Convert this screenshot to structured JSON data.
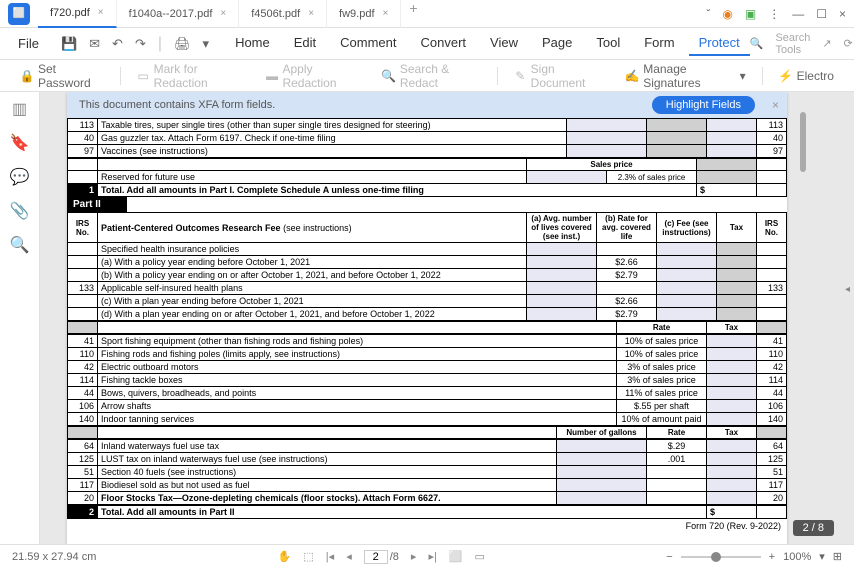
{
  "tabs": [
    {
      "label": "f720.pdf",
      "active": true
    },
    {
      "label": "f1040a--2017.pdf",
      "active": false
    },
    {
      "label": "f4506t.pdf",
      "active": false
    },
    {
      "label": "fw9.pdf",
      "active": false
    }
  ],
  "menu": {
    "file": "File",
    "items": [
      "Home",
      "Edit",
      "Comment",
      "Convert",
      "View",
      "Page",
      "Tool",
      "Form",
      "Protect"
    ],
    "active": "Protect",
    "search": "Search Tools"
  },
  "toolbar": {
    "set_password": "Set Password",
    "mark_redaction": "Mark for Redaction",
    "apply_redaction": "Apply Redaction",
    "search_redact": "Search & Redact",
    "sign_document": "Sign Document",
    "manage_signatures": "Manage Signatures",
    "electro": "Electro"
  },
  "banner": {
    "text": "This document contains XFA form fields.",
    "button": "Highlight Fields"
  },
  "doc": {
    "rows_top": [
      {
        "num": "113",
        "desc": "Taxable tires, super single tires (other than super single tires designed for steering)",
        "col1": "",
        "irs": "113"
      },
      {
        "num": "40",
        "desc": "Gas guzzler tax. Attach Form 6197. Check if one-time filing",
        "irs": "40"
      },
      {
        "num": "97",
        "desc": "Vaccines (see instructions)",
        "irs": "97"
      }
    ],
    "sales_price_label": "Sales price",
    "reserved": "Reserved for future use",
    "sales_price_pct": "2.3% of sales price",
    "total1": {
      "num": "1",
      "text": "Total. Add all amounts in Part I. Complete Schedule A unless one-time filing",
      "dollar": "$"
    },
    "part2": "Part II",
    "headers": {
      "irs_no": "IRS No.",
      "fee_title": "Patient-Centered Outcomes Research Fee",
      "fee_instr": "(see instructions)",
      "avg": "(a) Avg. number of lives covered (see inst.)",
      "rate": "(b) Rate for avg. covered life",
      "fee": "(c) Fee (see instructions)",
      "tax": "Tax"
    },
    "fee_rows": [
      {
        "desc": "Specified health insurance policies"
      },
      {
        "desc": "(a) With a policy year ending before October 1, 2021",
        "rate": "$2.66"
      },
      {
        "desc": "(b) With a policy year ending on or after October 1, 2021, and before October 1, 2022",
        "rate": "$2.79"
      },
      {
        "num": "133",
        "desc": "Applicable self-insured health plans",
        "irs": "133"
      },
      {
        "desc": "(c) With a plan year ending before October 1, 2021",
        "rate": "$2.66"
      },
      {
        "desc": "(d) With a plan year ending on or after October 1, 2021, and before October 1, 2022",
        "rate": "$2.79"
      }
    ],
    "rate_header": "Rate",
    "tax_header": "Tax",
    "excise_rows": [
      {
        "num": "41",
        "desc": "Sport fishing equipment (other than fishing rods and fishing poles)",
        "rate": "10% of sales price",
        "irs": "41"
      },
      {
        "num": "110",
        "desc": "Fishing rods and fishing poles (limits apply, see instructions)",
        "rate": "10% of sales price",
        "irs": "110"
      },
      {
        "num": "42",
        "desc": "Electric outboard motors",
        "rate": "3% of sales price",
        "irs": "42"
      },
      {
        "num": "114",
        "desc": "Fishing tackle boxes",
        "rate": "3% of sales price",
        "irs": "114"
      },
      {
        "num": "44",
        "desc": "Bows, quivers, broadheads, and points",
        "rate": "11% of sales price",
        "irs": "44"
      },
      {
        "num": "106",
        "desc": "Arrow shafts",
        "rate": "$.55 per shaft",
        "irs": "106"
      },
      {
        "num": "140",
        "desc": "Indoor tanning services",
        "rate": "10% of amount paid",
        "irs": "140"
      }
    ],
    "gallons_header": "Number of gallons",
    "fuel_rows": [
      {
        "num": "64",
        "desc": "Inland waterways fuel use tax",
        "rate": "$.29",
        "irs": "64"
      },
      {
        "num": "125",
        "desc": "LUST tax on inland waterways fuel use (see instructions)",
        "rate": ".001",
        "irs": "125"
      },
      {
        "num": "51",
        "desc": "Section 40 fuels (see instructions)",
        "rate": "",
        "irs": "51"
      },
      {
        "num": "117",
        "desc": "Biodiesel sold as but not used as fuel",
        "rate": "",
        "irs": "117"
      },
      {
        "num": "20",
        "desc": "Floor Stocks Tax—Ozone-depleting chemicals (floor stocks). Attach Form 6627.",
        "rate": "",
        "irs": "20"
      }
    ],
    "total2": {
      "num": "2",
      "text": "Total. Add all amounts in Part II",
      "dollar": "$"
    },
    "form_footer": "Form 720 (Rev. 9-2022)"
  },
  "status": {
    "dimensions": "21.59 x 27.94 cm",
    "page_current": "2",
    "page_total": "/8",
    "zoom": "100%",
    "badge": "2 / 8"
  }
}
